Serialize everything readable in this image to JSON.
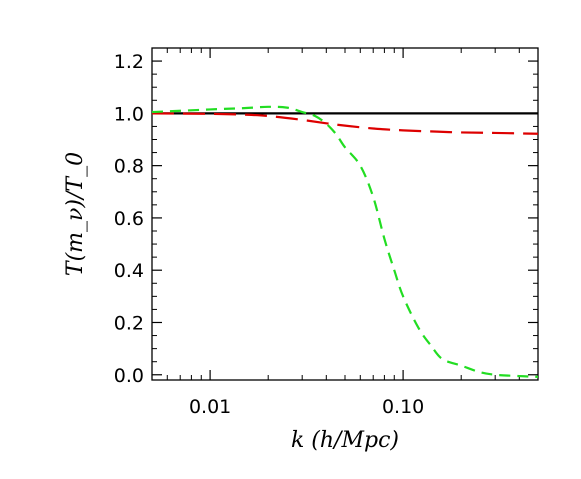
{
  "chart_data": {
    "type": "line",
    "xlabel": "k (h/Mpc)",
    "ylabel": "T(m_ν)/T_0",
    "xscale": "log",
    "xlim": [
      0.005,
      0.5
    ],
    "ylim": [
      -0.02,
      1.25
    ],
    "grid": false,
    "x_tick_labels": [
      "0.01",
      "0.10"
    ],
    "x_ticks": [
      0.01,
      0.1
    ],
    "y_tick_labels": [
      "0.0",
      "0.2",
      "0.4",
      "0.6",
      "0.8",
      "1.0",
      "1.2"
    ],
    "y_ticks": [
      0.0,
      0.2,
      0.4,
      0.6,
      0.8,
      1.0,
      1.2
    ],
    "series": [
      {
        "style": "solid",
        "color": "#000000",
        "x": [
          0.005,
          0.5
        ],
        "y": [
          1.0,
          1.0
        ]
      },
      {
        "style": "long-dash",
        "color": "#dd0000",
        "x": [
          0.005,
          0.01,
          0.015,
          0.02,
          0.03,
          0.04,
          0.05,
          0.07,
          0.1,
          0.15,
          0.2,
          0.3,
          0.5
        ],
        "y": [
          1.0,
          0.998,
          0.995,
          0.99,
          0.975,
          0.962,
          0.953,
          0.942,
          0.935,
          0.93,
          0.927,
          0.925,
          0.922
        ]
      },
      {
        "style": "dash",
        "color": "#22dd22",
        "x": [
          0.005,
          0.01,
          0.015,
          0.02,
          0.025,
          0.03,
          0.035,
          0.04,
          0.045,
          0.05,
          0.06,
          0.07,
          0.08,
          0.09,
          0.1,
          0.12,
          0.14,
          0.16,
          0.2,
          0.25,
          0.3,
          0.4,
          0.5
        ],
        "y": [
          1.005,
          1.015,
          1.02,
          1.025,
          1.022,
          1.005,
          0.99,
          0.96,
          0.92,
          0.87,
          0.8,
          0.68,
          0.52,
          0.4,
          0.3,
          0.18,
          0.11,
          0.06,
          0.035,
          0.01,
          0.0,
          -0.005,
          -0.008
        ]
      }
    ]
  }
}
